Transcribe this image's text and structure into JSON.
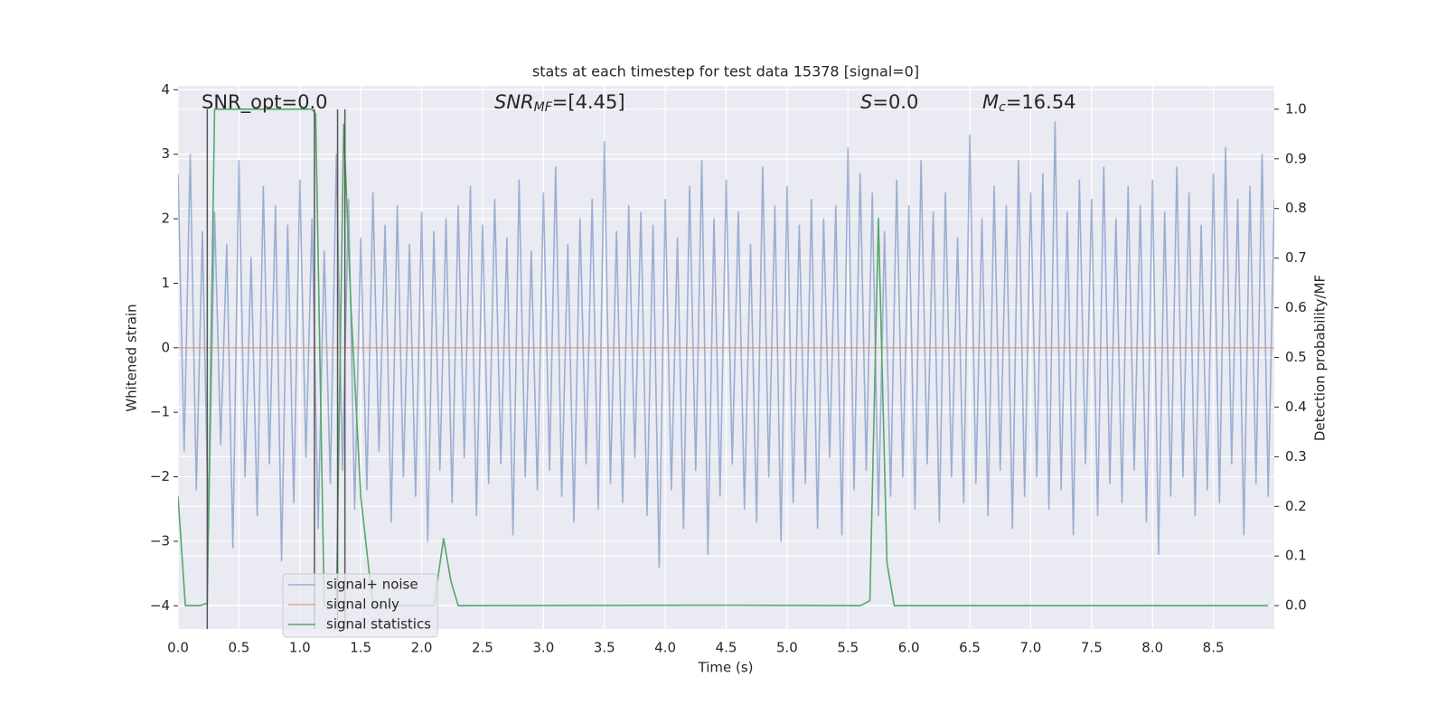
{
  "chart_data": {
    "type": "line",
    "title": "stats at each timestep for test data 15378 [signal=0]",
    "xlabel": "Time (s)",
    "ylabel": "Whitened strain",
    "y2label": "Detection probability/MF",
    "xlim": [
      0,
      9.0
    ],
    "ylim": [
      -4.36,
      4.06
    ],
    "y2lim": [
      -0.047,
      1.047
    ],
    "grid": true,
    "background": "#eaeaf2",
    "legend": "lower left",
    "xticks": [
      {
        "value": 0,
        "label": "0.0"
      },
      {
        "value": 0.5,
        "label": "0.5"
      },
      {
        "value": 1,
        "label": "1.0"
      },
      {
        "value": 1.5,
        "label": "1.5"
      },
      {
        "value": 2,
        "label": "2.0"
      },
      {
        "value": 2.5,
        "label": "2.5"
      },
      {
        "value": 3,
        "label": "3.0"
      },
      {
        "value": 3.5,
        "label": "3.5"
      },
      {
        "value": 4,
        "label": "4.0"
      },
      {
        "value": 4.5,
        "label": "4.5"
      },
      {
        "value": 5,
        "label": "5.0"
      },
      {
        "value": 5.5,
        "label": "5.5"
      },
      {
        "value": 6,
        "label": "6.0"
      },
      {
        "value": 6.5,
        "label": "6.5"
      },
      {
        "value": 7,
        "label": "7.0"
      },
      {
        "value": 7.5,
        "label": "7.5"
      },
      {
        "value": 8,
        "label": "8.0"
      },
      {
        "value": 8.5,
        "label": "8.5"
      }
    ],
    "yticks": [
      {
        "value": -4,
        "label": "−4"
      },
      {
        "value": -3,
        "label": "−3"
      },
      {
        "value": -2,
        "label": "−2"
      },
      {
        "value": -1,
        "label": "−1"
      },
      0,
      1,
      2,
      3,
      4
    ],
    "y2ticks": [
      {
        "value": 0,
        "label": "0.0"
      },
      {
        "value": 0.1,
        "label": "0.1"
      },
      {
        "value": 0.2,
        "label": "0.2"
      },
      {
        "value": 0.3,
        "label": "0.3"
      },
      {
        "value": 0.4,
        "label": "0.4"
      },
      {
        "value": 0.5,
        "label": "0.5"
      },
      {
        "value": 0.6,
        "label": "0.6"
      },
      {
        "value": 0.7,
        "label": "0.7"
      },
      {
        "value": 0.8,
        "label": "0.8"
      },
      {
        "value": 0.9,
        "label": "0.9"
      },
      {
        "value": 1,
        "label": "1.0"
      }
    ],
    "series": [
      {
        "name": "signal+ noise",
        "color": "#4c72b0",
        "alpha": 0.5,
        "x": [
          0,
          0.05,
          0.1,
          0.15,
          0.2,
          0.25,
          0.3,
          0.35,
          0.4,
          0.45,
          0.5,
          0.55,
          0.6,
          0.65,
          0.7,
          0.75,
          0.8,
          0.85,
          0.9,
          0.95,
          1,
          1.05,
          1.1,
          1.15,
          1.2,
          1.25,
          1.3,
          1.35,
          1.4,
          1.45,
          1.5,
          1.55,
          1.6,
          1.65,
          1.7,
          1.75,
          1.8,
          1.85,
          1.9,
          1.95,
          2,
          2.05,
          2.1,
          2.15,
          2.2,
          2.25,
          2.3,
          2.35,
          2.4,
          2.45,
          2.5,
          2.55,
          2.6,
          2.65,
          2.7,
          2.75,
          2.8,
          2.85,
          2.9,
          2.95,
          3,
          3.05,
          3.1,
          3.15,
          3.2,
          3.25,
          3.3,
          3.35,
          3.4,
          3.45,
          3.5,
          3.55,
          3.6,
          3.65,
          3.7,
          3.75,
          3.8,
          3.85,
          3.9,
          3.95,
          4,
          4.05,
          4.1,
          4.15,
          4.2,
          4.25,
          4.3,
          4.35,
          4.4,
          4.45,
          4.5,
          4.55,
          4.6,
          4.65,
          4.7,
          4.75,
          4.8,
          4.85,
          4.9,
          4.95,
          5,
          5.05,
          5.1,
          5.15,
          5.2,
          5.25,
          5.3,
          5.35,
          5.4,
          5.45,
          5.5,
          5.55,
          5.6,
          5.65,
          5.7,
          5.75,
          5.8,
          5.85,
          5.9,
          5.95,
          6,
          6.05,
          6.1,
          6.15,
          6.2,
          6.25,
          6.3,
          6.35,
          6.4,
          6.45,
          6.5,
          6.55,
          6.6,
          6.65,
          6.7,
          6.75,
          6.8,
          6.85,
          6.9,
          6.95,
          7,
          7.05,
          7.1,
          7.15,
          7.2,
          7.25,
          7.3,
          7.35,
          7.4,
          7.45,
          7.5,
          7.55,
          7.6,
          7.65,
          7.7,
          7.75,
          7.8,
          7.85,
          7.9,
          7.95,
          8,
          8.05,
          8.1,
          8.15,
          8.2,
          8.25,
          8.3,
          8.35,
          8.4,
          8.45,
          8.5,
          8.55,
          8.6,
          8.65,
          8.7,
          8.75,
          8.8,
          8.85,
          8.9,
          8.95,
          9
        ],
        "values": [
          2.7,
          -1.6,
          3.0,
          -2.2,
          1.8,
          -2.9,
          2.1,
          -1.5,
          1.6,
          -3.1,
          2.9,
          -2.0,
          1.4,
          -2.6,
          2.5,
          -1.8,
          2.2,
          -3.3,
          1.9,
          -2.4,
          2.6,
          -1.7,
          2.0,
          -2.8,
          1.5,
          -2.1,
          3.0,
          -1.9,
          2.3,
          -2.5,
          1.7,
          -2.2,
          2.4,
          -1.6,
          1.9,
          -2.7,
          2.2,
          -2.0,
          1.6,
          -2.3,
          2.1,
          -3.0,
          1.8,
          -1.9,
          2.0,
          -2.4,
          2.2,
          -1.7,
          2.5,
          -2.6,
          1.9,
          -2.1,
          2.3,
          -1.8,
          1.7,
          -2.9,
          2.6,
          -2.0,
          1.5,
          -2.2,
          2.4,
          -1.9,
          2.8,
          -2.3,
          1.6,
          -2.7,
          2.0,
          -1.8,
          2.3,
          -2.5,
          3.2,
          -2.1,
          1.8,
          -2.4,
          2.2,
          -1.7,
          2.1,
          -2.6,
          1.9,
          -3.4,
          2.3,
          -2.2,
          1.7,
          -2.8,
          2.5,
          -1.9,
          2.9,
          -3.2,
          2.0,
          -2.3,
          2.6,
          -1.8,
          2.1,
          -2.5,
          1.6,
          -2.7,
          2.8,
          -2.0,
          2.2,
          -3.0,
          2.5,
          -2.4,
          1.9,
          -2.1,
          2.3,
          -2.8,
          2.0,
          -1.7,
          2.2,
          -2.9,
          3.1,
          -2.2,
          2.7,
          -1.9,
          2.4,
          -2.6,
          1.8,
          -2.3,
          2.6,
          -2.0,
          2.2,
          -2.5,
          2.9,
          -1.8,
          2.1,
          -2.7,
          2.4,
          -2.0,
          1.7,
          -2.4,
          3.3,
          -2.1,
          2.0,
          -2.6,
          2.5,
          -1.9,
          2.2,
          -2.8,
          2.9,
          -2.3,
          2.4,
          -2.0,
          2.7,
          -2.5,
          3.5,
          -2.2,
          2.1,
          -2.9,
          2.6,
          -1.8,
          2.3,
          -2.6,
          2.8,
          -2.1,
          2.0,
          -2.4,
          2.5,
          -1.9,
          2.2,
          -2.7,
          2.6,
          -3.2,
          2.1,
          -2.3,
          2.8,
          -2.0,
          2.4,
          -2.6,
          1.9,
          -2.2,
          2.7,
          -2.4,
          3.1,
          -1.8,
          2.3,
          -2.9,
          2.5,
          -2.1,
          3.0,
          -2.3,
          2.3
        ]
      },
      {
        "name": "signal only",
        "color": "#dd8452",
        "alpha": 0.6,
        "x": [
          0,
          9
        ],
        "values": [
          0,
          0
        ]
      },
      {
        "name": "signal statistics",
        "color": "#55a868",
        "alpha": 1,
        "axis": "y2",
        "x": [
          0,
          0.06,
          0.12,
          0.18,
          0.24,
          0.3,
          1.1,
          1.13,
          1.2,
          1.3,
          1.36,
          1.42,
          1.5,
          1.6,
          2.1,
          2.18,
          2.24,
          2.3,
          4.5,
          5.6,
          5.68,
          5.75,
          5.82,
          5.88,
          8.95
        ],
        "values": [
          0.22,
          0,
          0,
          0,
          0.005,
          1.0,
          1.0,
          0.99,
          0,
          0,
          0.97,
          0.6,
          0.22,
          0,
          0,
          0.135,
          0.05,
          0,
          0.001,
          0,
          0.01,
          0.78,
          0.087,
          0,
          0
        ]
      }
    ],
    "markers": {
      "color": "#555555",
      "x": [
        0.24,
        1.12,
        1.31,
        1.37
      ]
    },
    "annotations": [
      {
        "main": "SNR_opt=0.0"
      },
      {
        "main": "SNR",
        "sub": "MF",
        "rest": "=[4.45]"
      },
      {
        "main": "S",
        "rest": "=0.0"
      },
      {
        "main": "M",
        "sub": "c",
        "rest": "=16.54"
      }
    ]
  }
}
